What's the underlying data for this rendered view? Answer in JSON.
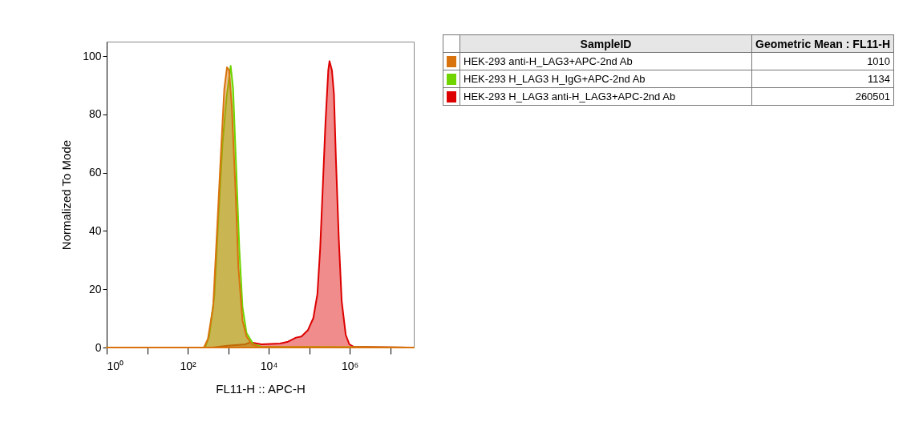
{
  "chart_data": {
    "type": "area",
    "xlabel": "FL11-H :: APC-H",
    "ylabel": "Normalized To Mode",
    "legend_title": "SampleID",
    "legend": "right",
    "grid": false,
    "log": "x",
    "xlim": [
      1,
      38000000
    ],
    "ylim": [
      0,
      105
    ],
    "xticks": [
      {
        "value": 1,
        "label": "10⁰"
      },
      {
        "value": 10,
        "label": null
      },
      {
        "value": 100,
        "label": "10²"
      },
      {
        "value": 1000,
        "label": null
      },
      {
        "value": 10000,
        "label": "10⁴"
      },
      {
        "value": 100000,
        "label": null
      },
      {
        "value": 1000000,
        "label": "10⁶"
      },
      {
        "value": 10000000,
        "label": null
      }
    ],
    "yticks": [
      0,
      20,
      40,
      60,
      80,
      100
    ],
    "annotations": [
      "Geometric Mean : FL11-H",
      "1010",
      "1134",
      "260501"
    ],
    "series": [
      {
        "name": "HEK-293 anti-H_LAG3+APC-2nd Ab",
        "color": "#d9730d",
        "x": [
          1,
          250,
          315,
          424,
          535,
          672,
          800,
          933,
          1050,
          1230,
          1550,
          1780,
          2250,
          2830,
          3830,
          5500,
          38000000
        ],
        "values": [
          0,
          0,
          2.9,
          13.9,
          41.3,
          68.7,
          88.8,
          96.2,
          95.2,
          82.4,
          50.5,
          27.6,
          9.3,
          3.8,
          1.1,
          0.3,
          0
        ]
      },
      {
        "name": "HEK-293 H_LAG3 H_IgG+APC-2nd Ab",
        "color": "#6fd400",
        "x": [
          1,
          269,
          339,
          457,
          575,
          724,
          912,
          1150,
          1320,
          1550,
          1880,
          2250,
          2830,
          4170,
          6600,
          38000000
        ],
        "values": [
          0,
          0,
          3.8,
          18,
          45,
          70,
          86,
          96.7,
          89,
          64,
          34,
          14,
          5,
          1.1,
          0.3,
          0
        ]
      },
      {
        "name": "HEK-293 H_LAG3 anti-H_LAG3+APC-2nd Ab",
        "color": "#dd0000",
        "x": [
          1,
          400,
          950,
          2630,
          3550,
          6600,
          19000,
          30000,
          47000,
          64000,
          93000,
          126000,
          159000,
          186000,
          214000,
          251000,
          295000,
          316000,
          363000,
          407000,
          457000,
          537000,
          631000,
          794000,
          977000,
          1230000,
          38000000
        ],
        "values": [
          0,
          0,
          0.6,
          1.1,
          1.8,
          1.1,
          1.4,
          2.0,
          3.4,
          3.8,
          6.0,
          10.1,
          18.4,
          34,
          54,
          77,
          95.2,
          98.3,
          95.2,
          87,
          64,
          37,
          16,
          4.4,
          1.1,
          0.3,
          0
        ]
      }
    ]
  }
}
